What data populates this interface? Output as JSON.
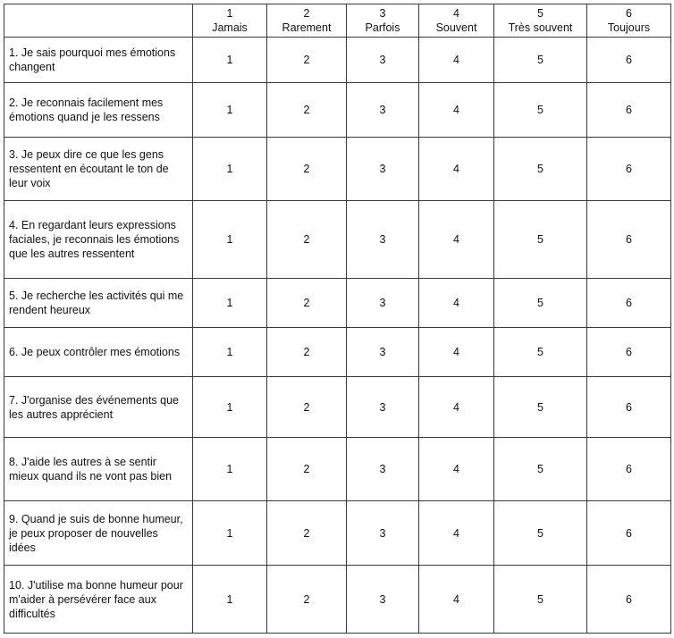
{
  "header": {
    "corner": "",
    "columns": [
      {
        "number": "1",
        "label": "Jamais"
      },
      {
        "number": "2",
        "label": "Rarement"
      },
      {
        "number": "3",
        "label": "Parfois"
      },
      {
        "number": "4",
        "label": "Souvent"
      },
      {
        "number": "5",
        "label": "Très souvent"
      },
      {
        "number": "6",
        "label": "Toujours"
      }
    ]
  },
  "rows": [
    {
      "question": "1. Je sais pourquoi mes émotions changent",
      "values": [
        "1",
        "2",
        "3",
        "4",
        "5",
        "6"
      ]
    },
    {
      "question": "2. Je reconnais facilement mes émotions quand je les ressens",
      "values": [
        "1",
        "2",
        "3",
        "4",
        "5",
        "6"
      ]
    },
    {
      "question": "3. Je peux dire ce que les gens ressentent en écoutant le ton de leur voix",
      "values": [
        "1",
        "2",
        "3",
        "4",
        "5",
        "6"
      ]
    },
    {
      "question": "4. En regardant leurs expressions faciales, je reconnais les émotions que les autres ressentent",
      "values": [
        "1",
        "2",
        "3",
        "4",
        "5",
        "6"
      ]
    },
    {
      "question": "5. Je recherche les activités qui me rendent heureux",
      "values": [
        "1",
        "2",
        "3",
        "4",
        "5",
        "6"
      ]
    },
    {
      "question": "6. Je peux contrôler mes émotions",
      "values": [
        "1",
        "2",
        "3",
        "4",
        "5",
        "6"
      ]
    },
    {
      "question": "7. J'organise des événements que les autres apprécient",
      "values": [
        "1",
        "2",
        "3",
        "4",
        "5",
        "6"
      ]
    },
    {
      "question": "8. J'aide les autres à se sentir mieux quand ils ne vont pas bien",
      "values": [
        "1",
        "2",
        "3",
        "4",
        "5",
        "6"
      ]
    },
    {
      "question": "9. Quand je suis de bonne humeur, je peux proposer de nouvelles idées",
      "values": [
        "1",
        "2",
        "3",
        "4",
        "5",
        "6"
      ]
    },
    {
      "question": "10. J'utilise ma bonne humeur pour m'aider à persévérer face aux difficultés",
      "values": [
        "1",
        "2",
        "3",
        "4",
        "5",
        "6"
      ]
    }
  ]
}
